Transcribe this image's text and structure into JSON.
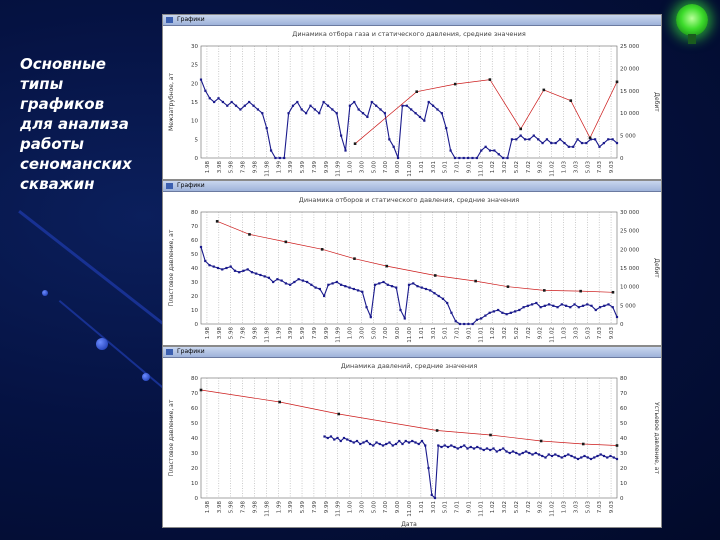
{
  "slide": {
    "title_lines": "Основные\nтипы\nграфиков\nдля анализа\nработы\nсеноманских\nскважин",
    "colors": {
      "accent_green": "#3ddc2b",
      "background": "#051242"
    }
  },
  "windows": [
    {
      "label": "Графики"
    },
    {
      "label": "Графики"
    },
    {
      "label": "Графики"
    }
  ],
  "chart_data": [
    {
      "type": "line",
      "title": "Динамика отбора газа и статического давления, средние значения",
      "ylabel": "Межзатрубное, ат",
      "y2label": "Дебит",
      "ylim": [
        0,
        30
      ],
      "y2lim": [
        0,
        25000
      ],
      "yticks": [
        "0",
        "5",
        "10",
        "15",
        "20",
        "25",
        "30"
      ],
      "y2ticks": [
        "0",
        "5 000",
        "10 000",
        "15 000",
        "20 000",
        "25 000"
      ],
      "xticks": [
        "1.98",
        "3.98",
        "5.98",
        "7.98",
        "9.98",
        "11.98",
        "1.99",
        "3.99",
        "5.99",
        "7.99",
        "9.99",
        "11.99",
        "1.00",
        "3.00",
        "5.00",
        "7.00",
        "9.00",
        "11.00",
        "1.01",
        "3.01",
        "5.01",
        "7.01",
        "9.01",
        "11.01",
        "1.02",
        "3.02",
        "5.02",
        "7.02",
        "9.02",
        "11.02",
        "1.03",
        "3.03",
        "5.03",
        "7.03",
        "9.03"
      ],
      "grid": true,
      "series": [
        {
          "axis": "left",
          "color": "#1a1a8c",
          "marker": "square",
          "values": [
            21,
            18,
            16,
            15,
            16,
            15,
            14,
            15,
            14,
            13,
            14,
            15,
            14,
            13,
            12,
            8,
            2,
            0,
            0,
            0,
            12,
            14,
            15,
            13,
            12,
            14,
            13,
            12,
            15,
            14,
            13,
            12,
            6,
            2,
            14,
            15,
            13,
            12,
            11,
            15,
            14,
            13,
            12,
            5,
            3,
            0,
            14,
            14,
            13,
            12,
            11,
            10,
            15,
            14,
            13,
            12,
            8,
            2,
            0,
            0,
            0,
            0,
            0,
            0,
            2,
            3,
            2,
            2,
            1,
            0,
            0,
            5,
            5,
            6,
            5,
            5,
            6,
            5,
            4,
            5,
            4,
            4,
            5,
            4,
            3,
            3,
            5,
            4,
            4,
            5,
            5,
            3,
            4,
            5,
            5,
            4
          ]
        },
        {
          "axis": "right",
          "color": "#cc1a1a",
          "marker": "square",
          "values": [
            null,
            null,
            null,
            null,
            null,
            null,
            null,
            null,
            null,
            null,
            null,
            null,
            null,
            null,
            null,
            null,
            null,
            null,
            null,
            null,
            null,
            null,
            null,
            null,
            null,
            null,
            null,
            null,
            null,
            null,
            null,
            null,
            null,
            null,
            null,
            null,
            null,
            null,
            null,
            null,
            3200,
            null,
            null,
            null,
            null,
            null,
            null,
            null,
            null,
            null,
            null,
            null,
            null,
            null,
            null,
            null,
            14800,
            null,
            null,
            null,
            null,
            null,
            null,
            null,
            null,
            null,
            16500,
            null,
            null,
            null,
            null,
            null,
            null,
            null,
            null,
            17500,
            null,
            null,
            null,
            null,
            null,
            null,
            null,
            6500,
            null,
            null,
            null,
            null,
            null,
            15200,
            null,
            null,
            null,
            null,
            null,
            null,
            12800,
            null,
            null,
            null,
            null,
            4500,
            null,
            null,
            null,
            null,
            null,
            null,
            17000
          ]
        }
      ]
    },
    {
      "type": "line",
      "title": "Динамика отборов и статического давления, средние значения",
      "ylabel": "Пластовое давление, ат",
      "y2label": "Дебит",
      "ylim": [
        0,
        80
      ],
      "y2lim": [
        0,
        30000
      ],
      "yticks": [
        "0",
        "10",
        "20",
        "30",
        "40",
        "50",
        "60",
        "70",
        "80"
      ],
      "y2ticks": [
        "0",
        "5 000",
        "10 000",
        "15 000",
        "20 000",
        "25 000",
        "30 000"
      ],
      "xticks": [
        "1.98",
        "3.98",
        "5.98",
        "7.98",
        "9.98",
        "11.98",
        "1.99",
        "3.99",
        "5.99",
        "7.99",
        "9.99",
        "11.99",
        "1.00",
        "3.00",
        "5.00",
        "7.00",
        "9.00",
        "11.00",
        "1.01",
        "3.01",
        "5.01",
        "7.01",
        "9.01",
        "11.01",
        "1.02",
        "3.02",
        "5.02",
        "7.02",
        "9.02",
        "11.02",
        "1.03",
        "3.03",
        "5.03",
        "7.03",
        "9.03"
      ],
      "grid": true,
      "series": [
        {
          "axis": "left",
          "color": "#1a1a8c",
          "marker": "square",
          "values": [
            55,
            45,
            42,
            41,
            40,
            39,
            40,
            41,
            38,
            37,
            38,
            39,
            37,
            36,
            35,
            34,
            33,
            30,
            32,
            31,
            29,
            28,
            30,
            32,
            31,
            30,
            28,
            26,
            25,
            20,
            28,
            29,
            30,
            28,
            27,
            26,
            25,
            24,
            23,
            12,
            5,
            28,
            29,
            30,
            28,
            27,
            26,
            10,
            4,
            28,
            29,
            27,
            26,
            25,
            24,
            22,
            20,
            18,
            15,
            8,
            2,
            0,
            0,
            0,
            0,
            3,
            4,
            6,
            8,
            9,
            10,
            8,
            7,
            8,
            9,
            10,
            12,
            13,
            14,
            15,
            12,
            13,
            14,
            13,
            12,
            14,
            13,
            12,
            14,
            12,
            13,
            14,
            13,
            10,
            12,
            13,
            14,
            12,
            5
          ]
        },
        {
          "axis": "right",
          "color": "#cc1a1a",
          "marker": "square",
          "values": [
            null,
            null,
            null,
            null,
            27500,
            null,
            null,
            null,
            null,
            null,
            null,
            null,
            24000,
            null,
            null,
            null,
            null,
            null,
            null,
            null,
            null,
            22000,
            null,
            null,
            null,
            null,
            null,
            null,
            null,
            null,
            20000,
            null,
            null,
            null,
            null,
            null,
            null,
            null,
            17500,
            null,
            null,
            null,
            null,
            null,
            null,
            null,
            15500,
            null,
            null,
            null,
            null,
            null,
            null,
            null,
            null,
            null,
            null,
            null,
            13000,
            null,
            null,
            null,
            null,
            null,
            null,
            null,
            null,
            null,
            11500,
            null,
            null,
            null,
            null,
            null,
            null,
            null,
            10000,
            null,
            null,
            null,
            null,
            null,
            null,
            null,
            null,
            9000,
            null,
            null,
            null,
            null,
            null,
            null,
            null,
            null,
            8800,
            null,
            null,
            null,
            null,
            null,
            null,
            null,
            8500,
            null
          ]
        }
      ]
    },
    {
      "type": "line",
      "title": "Динамика давлений, средние значения",
      "ylabel": "Пластовое давление, ат",
      "y2label": "Устьевое давление, ат",
      "xlabel": "Дата",
      "ylim": [
        0,
        80
      ],
      "y2lim": [
        0,
        80
      ],
      "yticks": [
        "0",
        "10",
        "20",
        "30",
        "40",
        "50",
        "60",
        "70",
        "80"
      ],
      "y2ticks": [
        "0",
        "10",
        "20",
        "30",
        "40",
        "50",
        "60",
        "70",
        "80"
      ],
      "xticks": [
        "1.98",
        "3.98",
        "5.98",
        "7.98",
        "9.98",
        "11.98",
        "1.99",
        "3.99",
        "5.99",
        "7.99",
        "9.99",
        "11.99",
        "1.00",
        "3.00",
        "5.00",
        "7.00",
        "9.00",
        "11.00",
        "1.01",
        "3.01",
        "5.01",
        "7.01",
        "9.01",
        "11.01",
        "1.02",
        "3.02",
        "5.02",
        "7.02",
        "9.02",
        "11.02",
        "1.03",
        "3.03",
        "5.03",
        "7.03",
        "9.03"
      ],
      "grid": true,
      "series": [
        {
          "axis": "left",
          "color": "#1a1a8c",
          "marker": "square",
          "values": [
            null,
            null,
            null,
            null,
            null,
            null,
            null,
            null,
            null,
            null,
            null,
            null,
            null,
            null,
            null,
            null,
            null,
            null,
            null,
            null,
            null,
            null,
            null,
            null,
            null,
            null,
            null,
            null,
            null,
            null,
            null,
            null,
            null,
            null,
            null,
            null,
            null,
            null,
            41,
            40,
            41,
            39,
            40,
            38,
            40,
            39,
            38,
            37,
            38,
            36,
            37,
            38,
            36,
            35,
            37,
            36,
            35,
            36,
            37,
            35,
            36,
            38,
            36,
            38,
            37,
            38,
            37,
            36,
            38,
            35,
            20,
            2,
            0,
            35,
            34,
            35,
            34,
            35,
            34,
            33,
            34,
            35,
            33,
            34,
            33,
            34,
            33,
            32,
            33,
            32,
            33,
            31,
            32,
            33,
            31,
            30,
            31,
            30,
            29,
            30,
            31,
            30,
            29,
            30,
            29,
            28,
            27,
            29,
            28,
            29,
            28,
            27,
            28,
            29,
            28,
            27,
            26,
            27,
            28,
            27,
            26,
            27,
            28,
            29,
            28,
            27,
            28,
            27,
            26
          ]
        },
        {
          "axis": "right",
          "color": "#cc1a1a",
          "marker": "square",
          "values": [
            72,
            null,
            null,
            null,
            null,
            null,
            null,
            null,
            null,
            null,
            null,
            null,
            null,
            null,
            null,
            null,
            null,
            null,
            null,
            null,
            null,
            null,
            null,
            null,
            null,
            null,
            null,
            null,
            64,
            null,
            null,
            null,
            null,
            null,
            null,
            null,
            null,
            null,
            null,
            null,
            null,
            null,
            null,
            null,
            null,
            null,
            null,
            null,
            null,
            56,
            null,
            null,
            null,
            null,
            null,
            null,
            null,
            null,
            null,
            null,
            null,
            null,
            null,
            null,
            null,
            null,
            null,
            null,
            null,
            null,
            null,
            null,
            null,
            null,
            null,
            null,
            null,
            null,
            null,
            null,
            null,
            null,
            null,
            null,
            45,
            null,
            null,
            null,
            null,
            null,
            null,
            null,
            null,
            null,
            null,
            null,
            null,
            null,
            null,
            null,
            null,
            null,
            null,
            42,
            null,
            null,
            null,
            null,
            null,
            null,
            null,
            null,
            null,
            null,
            null,
            null,
            null,
            null,
            null,
            null,
            null,
            38,
            null,
            null,
            null,
            null,
            null,
            null,
            null,
            null,
            null,
            null,
            null,
            null,
            null,
            null,
            36,
            null,
            null,
            null,
            null,
            null,
            null,
            null,
            null,
            null,
            null,
            null,
            35
          ]
        }
      ]
    }
  ]
}
